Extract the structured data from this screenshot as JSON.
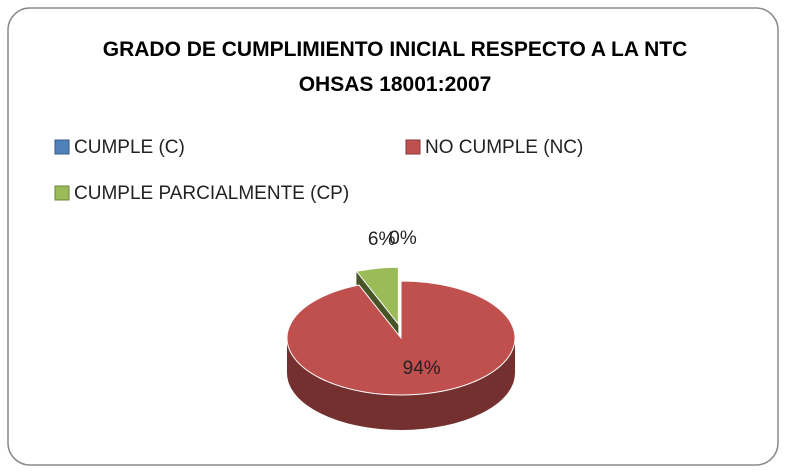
{
  "chart_data": {
    "type": "pie3d",
    "title": "GRADO DE CUMPLIMIENTO INICIAL RESPECTO A LA NTC OHSAS 18001:2007",
    "categories": [
      "CUMPLE (C)",
      "NO CUMPLE (NC)",
      "CUMPLE PARCIALMENTE (CP)"
    ],
    "values": [
      0,
      94,
      6
    ],
    "value_labels": [
      "0%",
      "94%",
      "6%"
    ],
    "colors": [
      "#4f81bd",
      "#c0504d",
      "#9bbb59"
    ],
    "legend": "top"
  }
}
